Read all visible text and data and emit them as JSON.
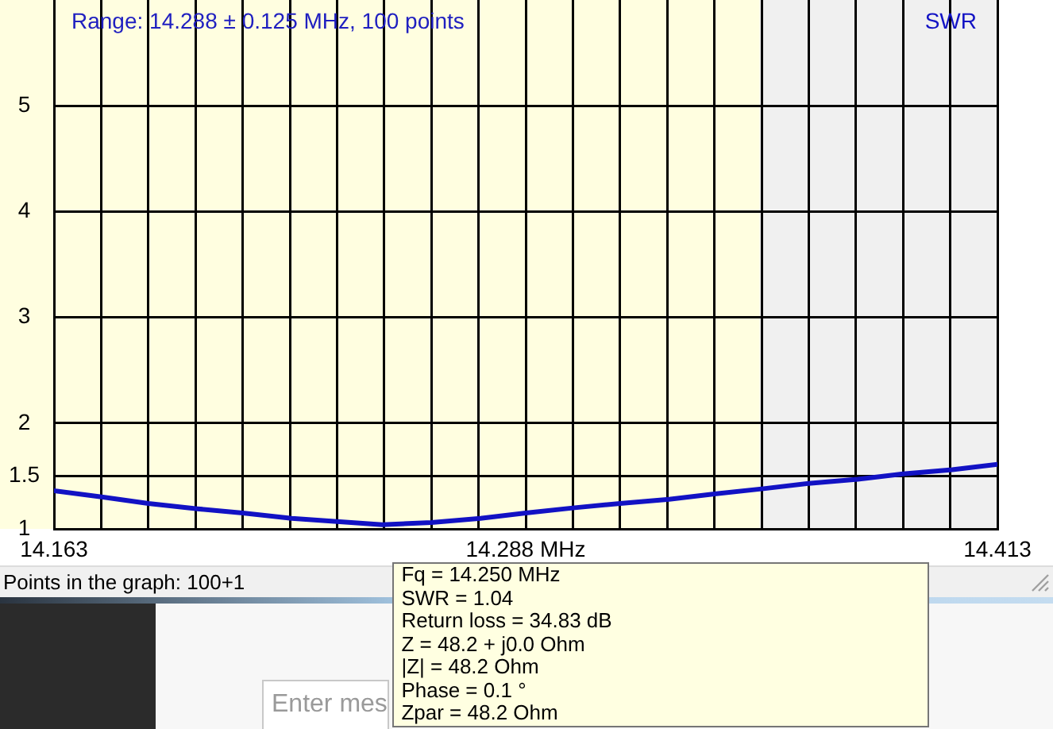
{
  "chart_data": {
    "type": "line",
    "annotations": [
      "Range: 14.288 ± 0.125 MHz, 100 points",
      "Points in the graph: 100+1",
      "Enter mes",
      {
        "text": "Fq = 14.250 MHz\nSWR = 1.04\nReturn loss = 34.83 dB\nZ = 48.2 + j0.0 Ohm\n|Z| = 48.2 Ohm\nPhase = 0.1 °\nZpar = 48.2 Ohm",
        "x": 14.25,
        "y": 1.04
      }
    ],
    "x": [
      14.163,
      14.176,
      14.188,
      14.201,
      14.213,
      14.226,
      14.238,
      14.25,
      14.263,
      14.276,
      14.288,
      14.301,
      14.313,
      14.326,
      14.338,
      14.351,
      14.363,
      14.376,
      14.388,
      14.401,
      14.413
    ],
    "series": [
      {
        "name": "SWR",
        "color": "#1212c4",
        "values": [
          1.36,
          1.3,
          1.24,
          1.19,
          1.15,
          1.1,
          1.07,
          1.04,
          1.06,
          1.1,
          1.15,
          1.2,
          1.24,
          1.28,
          1.33,
          1.38,
          1.43,
          1.47,
          1.52,
          1.56,
          1.61
        ]
      }
    ],
    "xlim": [
      14.163,
      14.413
    ],
    "xticks": [
      14.163,
      {
        "value": 14.1755,
        "label": null
      },
      {
        "value": 14.188,
        "label": null
      },
      {
        "value": 14.2005,
        "label": null
      },
      {
        "value": 14.213,
        "label": null
      },
      {
        "value": 14.2255,
        "label": null
      },
      {
        "value": 14.238,
        "label": null
      },
      {
        "value": 14.2505,
        "label": null
      },
      {
        "value": 14.263,
        "label": null
      },
      {
        "value": 14.2755,
        "label": null
      },
      {
        "value": 14.288,
        "label": "14.288 MHz"
      },
      {
        "value": 14.3005,
        "label": null
      },
      {
        "value": 14.313,
        "label": null
      },
      {
        "value": 14.3255,
        "label": null
      },
      {
        "value": 14.338,
        "label": null
      },
      {
        "value": 14.3505,
        "label": null
      },
      {
        "value": 14.363,
        "label": null
      },
      {
        "value": 14.3755,
        "label": null
      },
      {
        "value": 14.388,
        "label": null
      },
      {
        "value": 14.4005,
        "label": null
      },
      14.413
    ],
    "ylim": [
      1,
      6
    ],
    "yticks": [
      1,
      1.5,
      2,
      3,
      4,
      5
    ],
    "bands": [
      {
        "axis": "x",
        "from": 14.35,
        "to": 14.413,
        "color": "#f0f0f0"
      }
    ],
    "grid": true,
    "legend": "top right"
  }
}
